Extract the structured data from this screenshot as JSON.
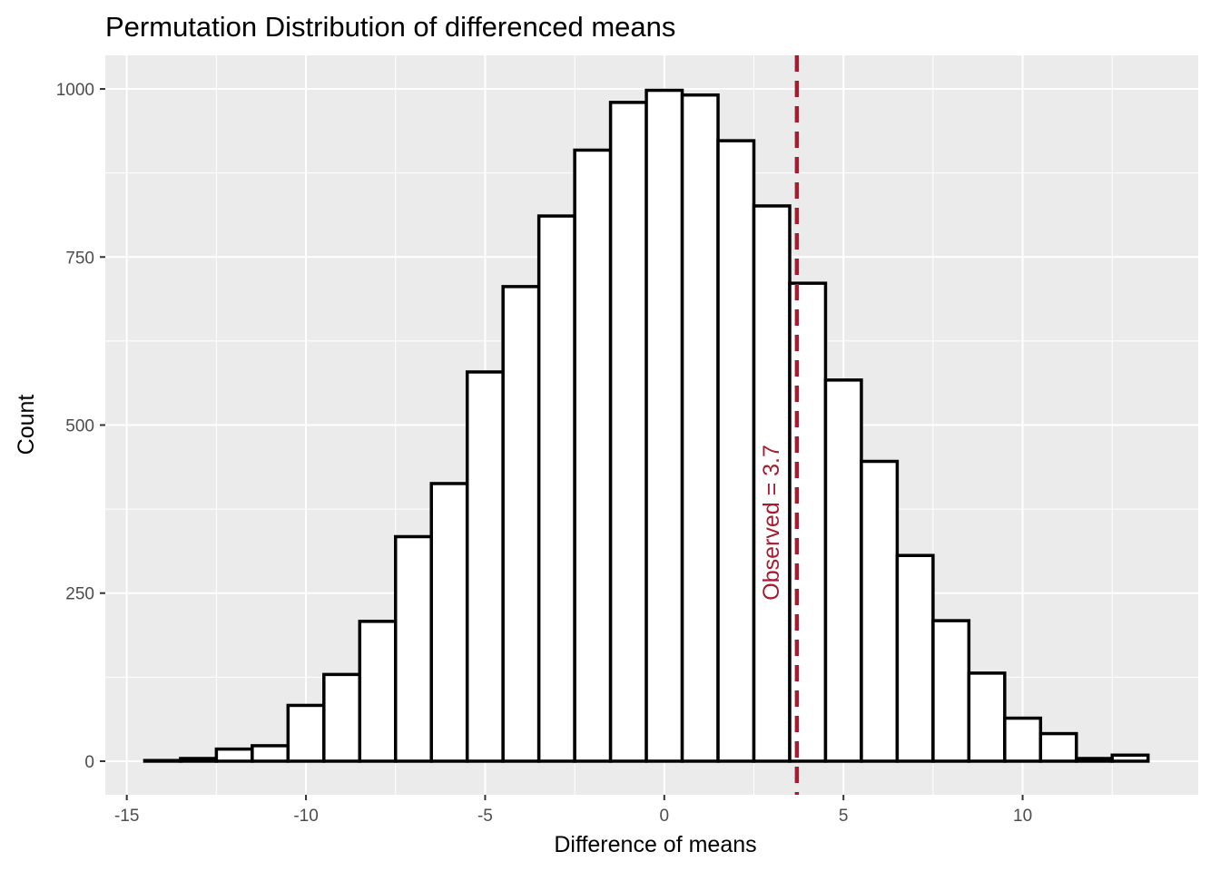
{
  "chart_data": {
    "type": "bar",
    "title": "Permutation Distribution of differenced means",
    "xlabel": "Difference of means",
    "ylabel": "Count",
    "xlim": [
      -15.6,
      14.9
    ],
    "ylim": [
      -50,
      1050
    ],
    "x_ticks": [
      -15,
      -10,
      -5,
      0,
      5,
      10
    ],
    "x_tick_labels": [
      "-15",
      "-10",
      "-5",
      "0",
      "5",
      "10"
    ],
    "y_ticks": [
      0,
      250,
      500,
      750,
      1000
    ],
    "y_tick_labels": [
      "0",
      "250",
      "500",
      "750",
      "1000"
    ],
    "bin_width": 1,
    "bins": [
      {
        "x": -14,
        "count": 1
      },
      {
        "x": -13,
        "count": 4
      },
      {
        "x": -12,
        "count": 18
      },
      {
        "x": -11,
        "count": 23
      },
      {
        "x": -10,
        "count": 83
      },
      {
        "x": -9,
        "count": 129
      },
      {
        "x": -8,
        "count": 208
      },
      {
        "x": -7,
        "count": 334
      },
      {
        "x": -6,
        "count": 413
      },
      {
        "x": -5,
        "count": 579
      },
      {
        "x": -4,
        "count": 706
      },
      {
        "x": -3,
        "count": 811
      },
      {
        "x": -2,
        "count": 909
      },
      {
        "x": -1,
        "count": 980
      },
      {
        "x": 0,
        "count": 998
      },
      {
        "x": 1,
        "count": 991
      },
      {
        "x": 2,
        "count": 923
      },
      {
        "x": 3,
        "count": 826
      },
      {
        "x": 4,
        "count": 711
      },
      {
        "x": 5,
        "count": 567
      },
      {
        "x": 6,
        "count": 446
      },
      {
        "x": 7,
        "count": 306
      },
      {
        "x": 8,
        "count": 209
      },
      {
        "x": 9,
        "count": 131
      },
      {
        "x": 10,
        "count": 64
      },
      {
        "x": 11,
        "count": 41
      },
      {
        "x": 12,
        "count": 4
      },
      {
        "x": 13,
        "count": 9
      }
    ],
    "observed": {
      "value": 3.7,
      "label": "Observed = 3.7",
      "color": "#a51c30"
    },
    "colors": {
      "panel_background": "#ebebeb",
      "grid": "#ffffff",
      "bar_fill": "#ffffff",
      "bar_outline": "#000000"
    },
    "grid": true,
    "legend": "none"
  }
}
